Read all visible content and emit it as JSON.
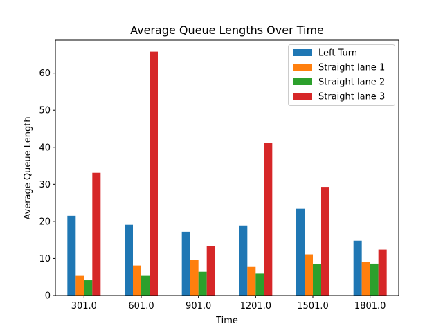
{
  "chart_data": {
    "type": "bar",
    "title": "Average Queue Lengths Over Time",
    "xlabel": "Time",
    "ylabel": "Average Queue Length",
    "categories": [
      "301.0",
      "601.0",
      "901.0",
      "1201.0",
      "1501.0",
      "1801.0"
    ],
    "ylim": [
      0,
      68.9
    ],
    "yticks": [
      0,
      10,
      20,
      30,
      40,
      50,
      60
    ],
    "grid": false,
    "legend_position": "top-right",
    "series": [
      {
        "name": "Left Turn",
        "color": "#1f77b4",
        "values": [
          21.5,
          19.1,
          17.2,
          18.9,
          23.4,
          14.8
        ]
      },
      {
        "name": "Straight lane 1",
        "color": "#ff7f0e",
        "values": [
          5.3,
          8.1,
          9.6,
          7.7,
          11.1,
          9.0
        ]
      },
      {
        "name": "Straight lane 2",
        "color": "#2ca02c",
        "values": [
          4.1,
          5.3,
          6.4,
          5.9,
          8.5,
          8.6
        ]
      },
      {
        "name": "Straight lane 3",
        "color": "#d62728",
        "values": [
          33.1,
          65.8,
          13.3,
          41.1,
          29.3,
          12.4
        ]
      }
    ]
  }
}
